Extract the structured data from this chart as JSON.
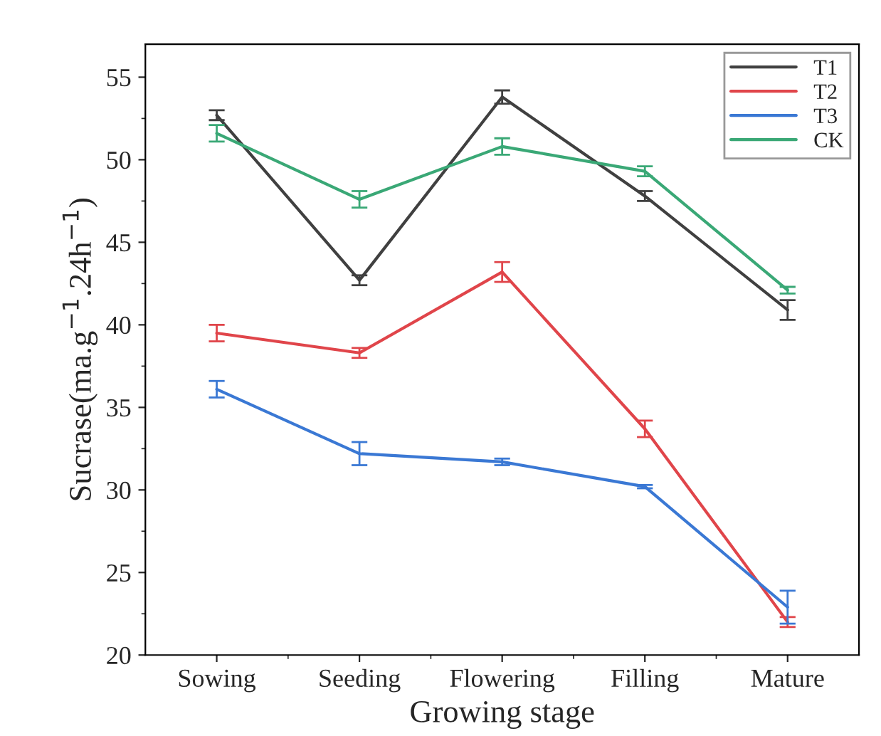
{
  "chart_data": {
    "type": "line",
    "xlabel": "Growing stage",
    "ylabel": "Sucrase(ma.g$^{−1}$.24h$^{−1}$)",
    "categories": [
      "Sowing",
      "Seeding",
      "Flowering",
      "Filling",
      "Mature"
    ],
    "series": [
      {
        "name": "T1",
        "color": "#404040",
        "values": [
          52.7,
          42.7,
          53.8,
          47.8,
          40.9
        ],
        "errors": [
          0.3,
          0.3,
          0.4,
          0.3,
          0.6
        ]
      },
      {
        "name": "T2",
        "color": "#e0454a",
        "values": [
          39.5,
          38.3,
          43.2,
          33.7,
          22.0
        ],
        "errors": [
          0.5,
          0.3,
          0.6,
          0.5,
          0.3
        ]
      },
      {
        "name": "T3",
        "color": "#3a78d4",
        "values": [
          36.1,
          32.2,
          31.7,
          30.2,
          22.9
        ],
        "errors": [
          0.5,
          0.7,
          0.2,
          0.1,
          1.0
        ]
      },
      {
        "name": "CK",
        "color": "#3aa876",
        "values": [
          51.6,
          47.6,
          50.8,
          49.3,
          42.1
        ],
        "errors": [
          0.5,
          0.5,
          0.5,
          0.3,
          0.2
        ]
      }
    ],
    "ylim": [
      20,
      57
    ],
    "yticks": [
      20,
      25,
      30,
      35,
      40,
      45,
      50,
      55
    ],
    "grid": false,
    "legend": "top right",
    "marker": "none",
    "line_style": "solid"
  }
}
